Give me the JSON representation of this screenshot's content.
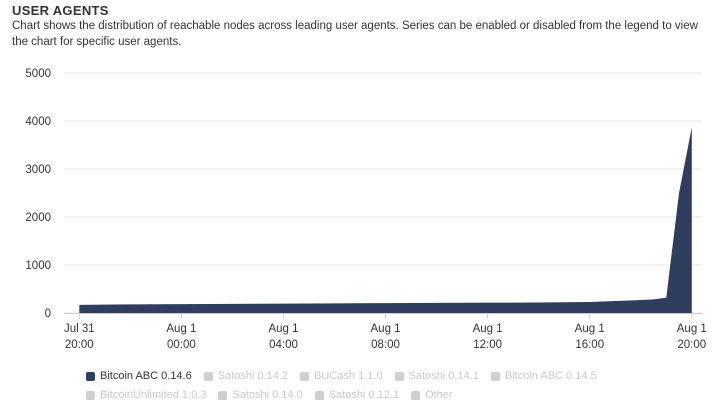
{
  "header": {
    "title": "USER AGENTS",
    "description": "Chart shows the distribution of reachable nodes across leading user agents. Series can be enabled or disabled from the legend to view the chart for specific user agents."
  },
  "chart_data": {
    "type": "area",
    "yticks": [
      "0",
      "1000",
      "2000",
      "3000",
      "4000",
      "5000"
    ],
    "ylim": [
      0,
      5000
    ],
    "xticks": [
      {
        "line1": "Jul 31",
        "line2": "20:00"
      },
      {
        "line1": "Aug 1",
        "line2": "00:00"
      },
      {
        "line1": "Aug 1",
        "line2": "04:00"
      },
      {
        "line1": "Aug 1",
        "line2": "08:00"
      },
      {
        "line1": "Aug 1",
        "line2": "12:00"
      },
      {
        "line1": "Aug 1",
        "line2": "16:00"
      },
      {
        "line1": "Aug 1",
        "line2": "20:00"
      }
    ],
    "xlim_hours": [
      -0.6,
      24.4
    ],
    "grid": true,
    "series": [
      {
        "name": "Bitcoin ABC 0.14.6",
        "color": "#2f3e5f",
        "enabled": true,
        "x_hours": [
          0,
          2,
          4,
          6,
          8,
          10,
          12,
          14,
          16,
          18,
          20,
          21,
          22,
          22.5,
          23,
          23.5,
          24
        ],
        "values": [
          170,
          180,
          185,
          190,
          195,
          200,
          205,
          210,
          215,
          220,
          230,
          250,
          270,
          285,
          320,
          2500,
          3870
        ]
      }
    ],
    "legend": [
      {
        "name": "Bitcoin ABC 0.14.6",
        "enabled": true,
        "color": "#2f3e5f"
      },
      {
        "name": "Satoshi 0.14.2",
        "enabled": false
      },
      {
        "name": "BUCash 1.1.0",
        "enabled": false
      },
      {
        "name": "Satoshi 0.14.1",
        "enabled": false
      },
      {
        "name": "Bitcoin ABC 0.14.5",
        "enabled": false
      },
      {
        "name": "BitcoinUnlimited 1.0.3",
        "enabled": false
      },
      {
        "name": "Satoshi 0.14.0",
        "enabled": false
      },
      {
        "name": "Satoshi 0.12.1",
        "enabled": false
      },
      {
        "name": "Other",
        "enabled": false
      }
    ],
    "legend_position": "bottom"
  }
}
